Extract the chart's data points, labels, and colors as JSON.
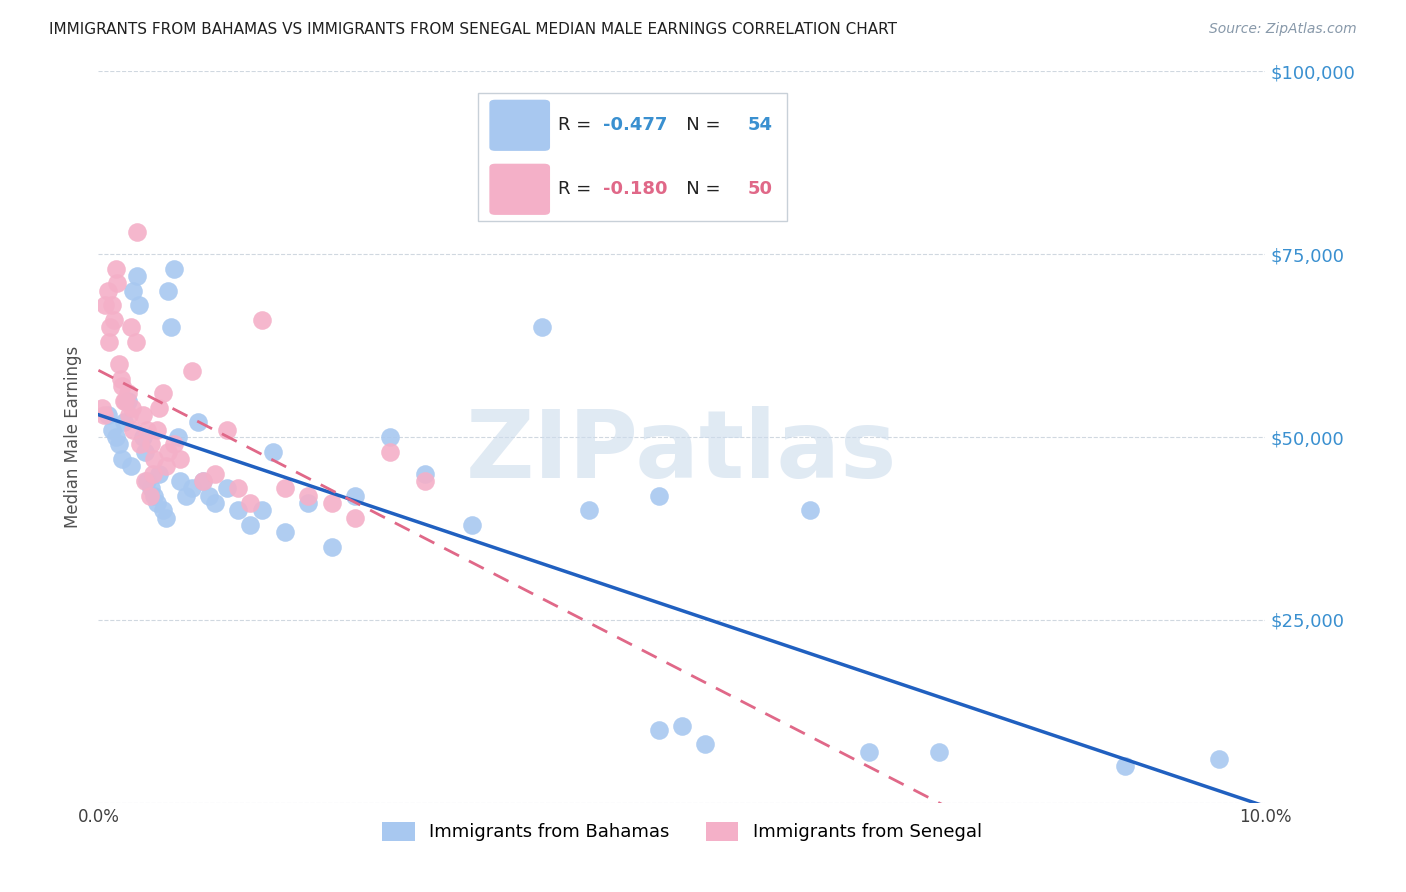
{
  "title": "IMMIGRANTS FROM BAHAMAS VS IMMIGRANTS FROM SENEGAL MEDIAN MALE EARNINGS CORRELATION CHART",
  "source": "Source: ZipAtlas.com",
  "ylabel": "Median Male Earnings",
  "xlim": [
    0.0,
    0.1
  ],
  "ylim": [
    0,
    100000
  ],
  "yticks": [
    0,
    25000,
    50000,
    75000,
    100000
  ],
  "ytick_labels": [
    "",
    "$25,000",
    "$50,000",
    "$75,000",
    "$100,000"
  ],
  "xticks": [
    0.0,
    0.02,
    0.04,
    0.06,
    0.08,
    0.1
  ],
  "xtick_labels": [
    "0.0%",
    "",
    "",
    "",
    "",
    "10.0%"
  ],
  "legend_label1": "Immigrants from Bahamas",
  "legend_label2": "Immigrants from Senegal",
  "R1": "-0.477",
  "N1": "54",
  "R2": "-0.180",
  "N2": "50",
  "color1": "#a8c8f0",
  "color2": "#f4b0c8",
  "line_color1": "#2060c0",
  "line_color2": "#e06888",
  "background_color": "#ffffff",
  "watermark": "ZIPatlas",
  "watermark_color": "#ccdcec",
  "title_color": "#202020",
  "axis_label_color": "#505050",
  "right_tick_color": "#3a90d0",
  "bahamas_x": [
    0.0008,
    0.0012,
    0.0015,
    0.0018,
    0.002,
    0.0022,
    0.0025,
    0.0028,
    0.003,
    0.0033,
    0.0035,
    0.0038,
    0.004,
    0.0042,
    0.0045,
    0.0048,
    0.005,
    0.0052,
    0.0055,
    0.0058,
    0.006,
    0.0062,
    0.0065,
    0.0068,
    0.007,
    0.0075,
    0.008,
    0.0085,
    0.009,
    0.0095,
    0.01,
    0.011,
    0.012,
    0.013,
    0.014,
    0.015,
    0.016,
    0.018,
    0.02,
    0.022,
    0.025,
    0.028,
    0.032,
    0.038,
    0.042,
    0.048,
    0.05,
    0.052,
    0.048,
    0.061,
    0.066,
    0.072,
    0.088,
    0.096
  ],
  "bahamas_y": [
    53000,
    51000,
    50000,
    49000,
    47000,
    52000,
    55000,
    46000,
    70000,
    72000,
    68000,
    50000,
    48000,
    44000,
    43000,
    42000,
    41000,
    45000,
    40000,
    39000,
    70000,
    65000,
    73000,
    50000,
    44000,
    42000,
    43000,
    52000,
    44000,
    42000,
    41000,
    43000,
    40000,
    38000,
    40000,
    48000,
    37000,
    41000,
    35000,
    42000,
    50000,
    45000,
    38000,
    65000,
    40000,
    10000,
    10500,
    8000,
    42000,
    40000,
    7000,
    7000,
    5000,
    6000
  ],
  "senegal_x": [
    0.0005,
    0.0008,
    0.001,
    0.0012,
    0.0015,
    0.0018,
    0.002,
    0.0022,
    0.0025,
    0.0028,
    0.003,
    0.0033,
    0.0038,
    0.0042,
    0.0045,
    0.0048,
    0.005,
    0.0055,
    0.006,
    0.0065,
    0.007,
    0.008,
    0.009,
    0.01,
    0.011,
    0.012,
    0.013,
    0.014,
    0.016,
    0.018,
    0.02,
    0.022,
    0.025,
    0.028,
    0.0003,
    0.0006,
    0.0009,
    0.0013,
    0.0016,
    0.0019,
    0.0023,
    0.0026,
    0.0029,
    0.0032,
    0.0036,
    0.004,
    0.0044,
    0.0047,
    0.0052,
    0.0058
  ],
  "senegal_y": [
    53000,
    70000,
    65000,
    68000,
    73000,
    60000,
    57000,
    55000,
    56000,
    65000,
    51000,
    78000,
    53000,
    51000,
    49000,
    47000,
    51000,
    56000,
    48000,
    49000,
    47000,
    59000,
    44000,
    45000,
    51000,
    43000,
    41000,
    66000,
    43000,
    42000,
    41000,
    39000,
    48000,
    44000,
    54000,
    68000,
    63000,
    66000,
    71000,
    58000,
    55000,
    53000,
    54000,
    63000,
    49000,
    44000,
    42000,
    45000,
    54000,
    46000
  ]
}
